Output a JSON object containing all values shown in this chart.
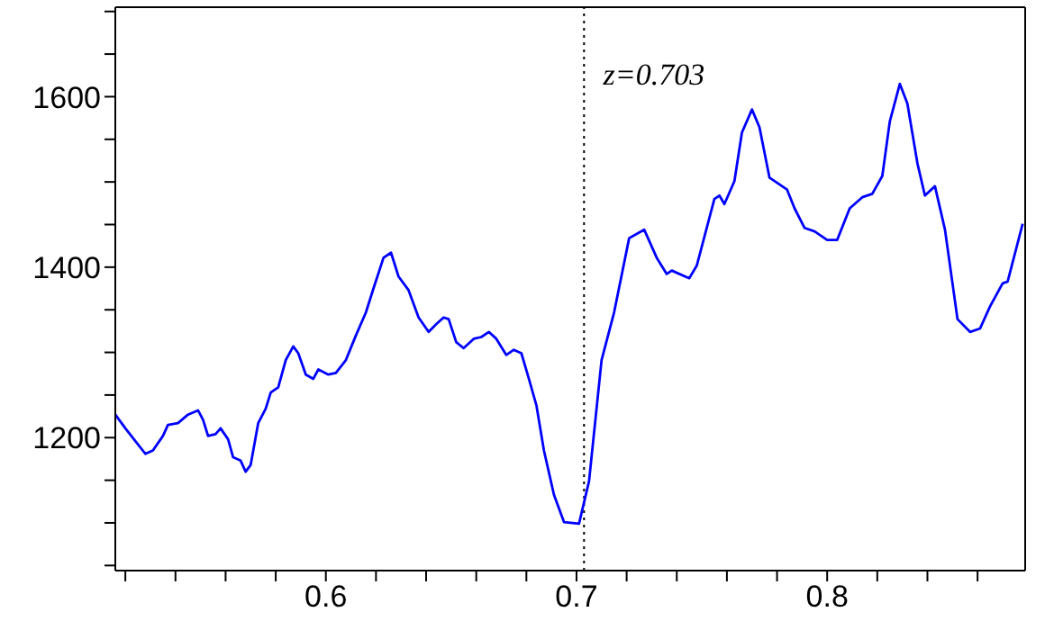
{
  "chart_data": {
    "type": "line",
    "xlim": [
      0.516,
      0.879
    ],
    "ylim": [
      1044,
      1705
    ],
    "xticks": [
      {
        "value": 0.52,
        "label": null
      },
      {
        "value": 0.54,
        "label": null
      },
      {
        "value": 0.56,
        "label": null
      },
      {
        "value": 0.58,
        "label": null
      },
      0.6,
      {
        "value": 0.62,
        "label": null
      },
      {
        "value": 0.64,
        "label": null
      },
      {
        "value": 0.66,
        "label": null
      },
      {
        "value": 0.68,
        "label": null
      },
      0.7,
      {
        "value": 0.72,
        "label": null
      },
      {
        "value": 0.74,
        "label": null
      },
      {
        "value": 0.76,
        "label": null
      },
      {
        "value": 0.78,
        "label": null
      },
      0.8,
      {
        "value": 0.82,
        "label": null
      },
      {
        "value": 0.84,
        "label": null
      },
      {
        "value": 0.86,
        "label": null
      }
    ],
    "yticks": [
      {
        "value": 1050,
        "label": null
      },
      {
        "value": 1100,
        "label": null
      },
      {
        "value": 1150,
        "label": null
      },
      1200,
      {
        "value": 1250,
        "label": null
      },
      {
        "value": 1300,
        "label": null
      },
      {
        "value": 1350,
        "label": null
      },
      1400,
      {
        "value": 1450,
        "label": null
      },
      {
        "value": 1500,
        "label": null
      },
      {
        "value": 1550,
        "label": null
      },
      1600,
      {
        "value": 1650,
        "label": null
      },
      {
        "value": 1700,
        "label": null
      }
    ],
    "marker": "none",
    "line_style": "solid",
    "ref_lines": [
      {
        "axis": "x",
        "value": 0.703,
        "label": "z=0.703",
        "color": "#000000",
        "line_style": "dotted"
      }
    ],
    "series": [
      {
        "color": "#0000ff",
        "x": [
          0.516,
          0.52,
          0.524,
          0.528,
          0.531,
          0.535,
          0.537,
          0.541,
          0.545,
          0.549,
          0.551,
          0.553,
          0.556,
          0.558,
          0.561,
          0.563,
          0.566,
          0.568,
          0.57,
          0.573,
          0.576,
          0.578,
          0.581,
          0.584,
          0.587,
          0.589,
          0.592,
          0.595,
          0.597,
          0.601,
          0.604,
          0.608,
          0.612,
          0.616,
          0.619,
          0.623,
          0.626,
          0.629,
          0.633,
          0.637,
          0.641,
          0.644,
          0.647,
          0.649,
          0.652,
          0.655,
          0.659,
          0.662,
          0.665,
          0.668,
          0.672,
          0.675,
          0.678,
          0.681,
          0.684,
          0.687,
          0.691,
          0.695,
          0.701,
          0.705,
          0.71,
          0.715,
          0.721,
          0.727,
          0.732,
          0.736,
          0.738,
          0.745,
          0.748,
          0.755,
          0.757,
          0.759,
          0.763,
          0.766,
          0.77,
          0.773,
          0.777,
          0.784,
          0.787,
          0.791,
          0.795,
          0.8,
          0.804,
          0.809,
          0.814,
          0.818,
          0.822,
          0.825,
          0.829,
          0.832,
          0.836,
          0.839,
          0.843,
          0.847,
          0.852,
          0.857,
          0.861,
          0.865,
          0.87,
          0.872,
          0.878
        ],
        "values": [
          1227,
          1211,
          1196,
          1181,
          1185,
          1202,
          1215,
          1217,
          1227,
          1232,
          1221,
          1202,
          1204,
          1211,
          1198,
          1177,
          1173,
          1160,
          1168,
          1217,
          1234,
          1253,
          1259,
          1291,
          1307,
          1299,
          1274,
          1269,
          1280,
          1274,
          1276,
          1291,
          1320,
          1347,
          1375,
          1411,
          1417,
          1389,
          1373,
          1341,
          1324,
          1333,
          1341,
          1339,
          1312,
          1305,
          1316,
          1318,
          1324,
          1316,
          1297,
          1303,
          1299,
          1269,
          1238,
          1185,
          1133,
          1101,
          1099,
          1149,
          1291,
          1347,
          1434,
          1444,
          1411,
          1392,
          1396,
          1387,
          1402,
          1480,
          1484,
          1474,
          1501,
          1558,
          1585,
          1564,
          1505,
          1491,
          1469,
          1446,
          1442,
          1432,
          1432,
          1469,
          1482,
          1486,
          1507,
          1571,
          1615,
          1592,
          1522,
          1484,
          1495,
          1444,
          1339,
          1324,
          1328,
          1354,
          1381,
          1383,
          1451
        ]
      }
    ]
  }
}
